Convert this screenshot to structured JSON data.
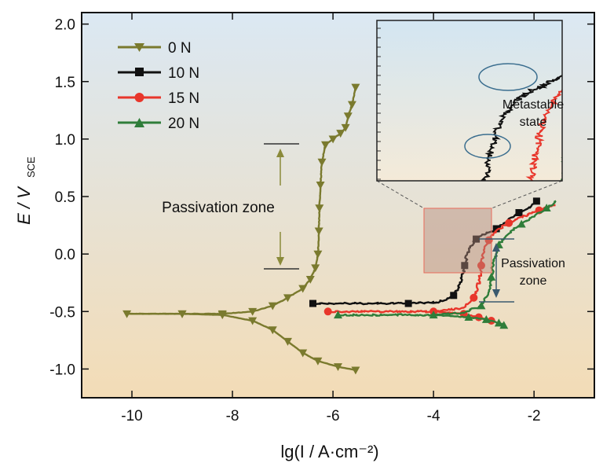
{
  "chart_data": {
    "type": "line",
    "xlabel": "lg(I / A·cm⁻²)",
    "ylabel_main": "E / V",
    "ylabel_sub": "SCE",
    "xlim": [
      -11,
      -0.8
    ],
    "ylim": [
      -1.25,
      2.1
    ],
    "x_ticks": [
      -10,
      -8,
      -6,
      -4,
      -2
    ],
    "x_tick_labels": [
      "-10",
      "-8",
      "-6",
      "-4",
      "-2"
    ],
    "y_ticks": [
      -1.0,
      -0.5,
      0.0,
      0.5,
      1.0,
      1.5,
      2.0
    ],
    "y_tick_labels": [
      "-1.0",
      "-0.5",
      "0.0",
      "0.5",
      "1.0",
      "1.5",
      "2.0"
    ],
    "legend_position": "top-left",
    "background_gradient": [
      "#dbe8f3",
      "#f3dcb6"
    ],
    "series": [
      {
        "name": "0 N",
        "color": "#7a7a2e",
        "marker": "triangle-down",
        "points": [
          [
            -10.1,
            -0.52
          ],
          [
            -9.0,
            -0.52
          ],
          [
            -8.2,
            -0.52
          ],
          [
            -7.6,
            -0.5
          ],
          [
            -7.2,
            -0.45
          ],
          [
            -6.9,
            -0.38
          ],
          [
            -6.6,
            -0.3
          ],
          [
            -6.45,
            -0.22
          ],
          [
            -6.35,
            -0.12
          ],
          [
            -6.3,
            0.0
          ],
          [
            -6.28,
            0.2
          ],
          [
            -6.27,
            0.4
          ],
          [
            -6.25,
            0.6
          ],
          [
            -6.22,
            0.8
          ],
          [
            -6.15,
            0.95
          ],
          [
            -6.0,
            1.0
          ],
          [
            -5.85,
            1.05
          ],
          [
            -5.75,
            1.1
          ],
          [
            -5.7,
            1.2
          ],
          [
            -5.62,
            1.3
          ],
          [
            -5.55,
            1.45
          ]
        ],
        "cathodic": [
          [
            -10.1,
            -0.52
          ],
          [
            -9.0,
            -0.52
          ],
          [
            -8.2,
            -0.53
          ],
          [
            -7.6,
            -0.58
          ],
          [
            -7.2,
            -0.66
          ],
          [
            -6.9,
            -0.76
          ],
          [
            -6.6,
            -0.86
          ],
          [
            -6.3,
            -0.93
          ],
          [
            -5.9,
            -0.98
          ],
          [
            -5.55,
            -1.01
          ]
        ]
      },
      {
        "name": "10 N",
        "color": "#111111",
        "marker": "square",
        "points": [
          [
            -6.4,
            -0.43
          ],
          [
            -5.5,
            -0.43
          ],
          [
            -4.5,
            -0.43
          ],
          [
            -3.9,
            -0.42
          ],
          [
            -3.6,
            -0.36
          ],
          [
            -3.45,
            -0.25
          ],
          [
            -3.38,
            -0.1
          ],
          [
            -3.3,
            0.05
          ],
          [
            -3.15,
            0.13
          ],
          [
            -2.95,
            0.18
          ],
          [
            -2.75,
            0.22
          ],
          [
            -2.5,
            0.3
          ],
          [
            -2.3,
            0.36
          ],
          [
            -2.1,
            0.4
          ],
          [
            -1.95,
            0.46
          ]
        ]
      },
      {
        "name": "15 N",
        "color": "#e8362b",
        "marker": "circle",
        "points": [
          [
            -6.1,
            -0.5
          ],
          [
            -5.0,
            -0.5
          ],
          [
            -4.0,
            -0.5
          ],
          [
            -3.4,
            -0.47
          ],
          [
            -3.2,
            -0.38
          ],
          [
            -3.1,
            -0.25
          ],
          [
            -3.05,
            -0.1
          ],
          [
            -3.0,
            0.02
          ],
          [
            -2.9,
            0.12
          ],
          [
            -2.75,
            0.2
          ],
          [
            -2.5,
            0.27
          ],
          [
            -2.2,
            0.33
          ],
          [
            -1.9,
            0.38
          ],
          [
            -1.6,
            0.43
          ]
        ],
        "cathodic": [
          [
            -4.0,
            -0.5
          ],
          [
            -3.4,
            -0.52
          ],
          [
            -3.1,
            -0.55
          ],
          [
            -2.85,
            -0.58
          ]
        ]
      },
      {
        "name": "20 N",
        "color": "#2f7d3a",
        "marker": "triangle-up",
        "points": [
          [
            -5.9,
            -0.53
          ],
          [
            -5.0,
            -0.53
          ],
          [
            -4.0,
            -0.53
          ],
          [
            -3.4,
            -0.51
          ],
          [
            -3.05,
            -0.45
          ],
          [
            -2.9,
            -0.35
          ],
          [
            -2.85,
            -0.2
          ],
          [
            -2.8,
            -0.05
          ],
          [
            -2.7,
            0.08
          ],
          [
            -2.5,
            0.18
          ],
          [
            -2.25,
            0.26
          ],
          [
            -2.0,
            0.33
          ],
          [
            -1.75,
            0.4
          ],
          [
            -1.55,
            0.46
          ]
        ],
        "cathodic": [
          [
            -4.0,
            -0.53
          ],
          [
            -3.3,
            -0.55
          ],
          [
            -2.95,
            -0.57
          ],
          [
            -2.7,
            -0.6
          ],
          [
            -2.6,
            -0.62
          ]
        ]
      }
    ],
    "annotations": {
      "passivation_left": "Passivation zone",
      "passivation_right_line1": "Passivation",
      "passivation_right_line2": "zone",
      "inset_label_line1": "Metastable",
      "inset_label_line2": "state"
    }
  }
}
